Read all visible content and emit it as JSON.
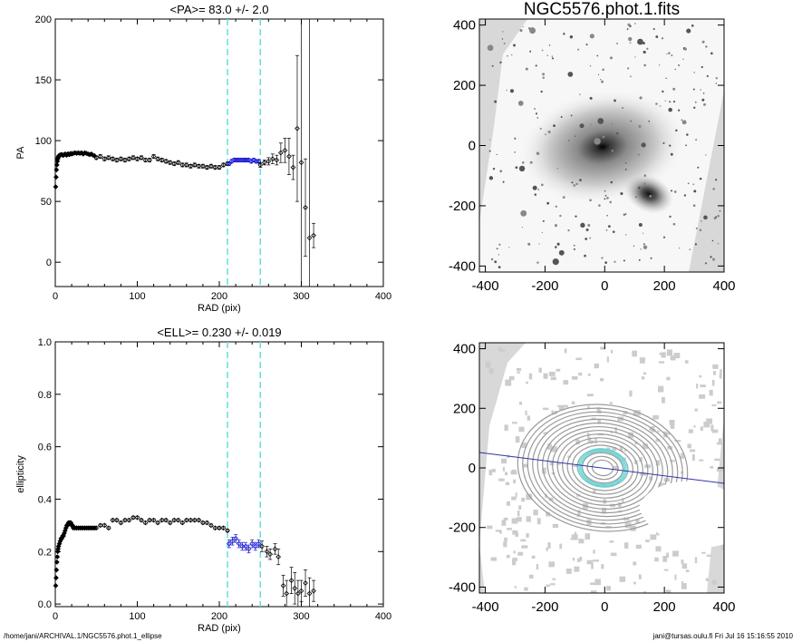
{
  "chart_data": [
    {
      "type": "scatter",
      "title": "<PA>=  83.0 +/-   2.0",
      "xlabel": "RAD (pix)",
      "ylabel": "PA",
      "xlim": [
        0,
        400
      ],
      "ylim": [
        -20,
        200
      ],
      "xticks": [
        0,
        100,
        200,
        300,
        400
      ],
      "yticks": [
        0,
        50,
        100,
        150,
        200
      ],
      "vlines": [
        210,
        250
      ],
      "series": [
        {
          "x": [
            0.5,
            1,
            1.5,
            2,
            2.5,
            3,
            3.5,
            4,
            4.5,
            5,
            6,
            7,
            8,
            9,
            10,
            11,
            12,
            13,
            14,
            15,
            16,
            17,
            18,
            19,
            20,
            22,
            24,
            26,
            28,
            30,
            32,
            34,
            36,
            38,
            40,
            42,
            44,
            46,
            48
          ],
          "y": [
            62,
            70,
            76,
            80,
            83,
            85,
            86,
            87,
            87.5,
            88,
            88,
            88.5,
            88.5,
            88,
            88,
            88.5,
            89,
            88.5,
            88,
            89,
            89,
            88.5,
            89,
            89.5,
            89,
            89.5,
            90,
            89.5,
            90,
            89.5,
            90,
            89,
            90,
            89.5,
            89,
            88.5,
            89,
            88,
            87.5
          ]
        },
        {
          "x": [
            50,
            55,
            60,
            65,
            70,
            75,
            80,
            85,
            90,
            95,
            100,
            105,
            110,
            115,
            120,
            125,
            130,
            135,
            140,
            145,
            150,
            155,
            160,
            165,
            170,
            175,
            180,
            185,
            190,
            195,
            200,
            205,
            210
          ],
          "y": [
            86,
            87,
            85,
            86,
            85,
            84,
            85,
            84,
            85,
            86,
            85,
            86,
            84,
            84,
            87,
            85,
            84,
            83,
            82,
            81,
            82,
            80,
            80,
            79,
            80,
            79,
            79,
            78,
            79,
            78,
            78,
            80,
            81
          ],
          "yerr": 1.5
        },
        {
          "x": [
            212,
            215,
            218,
            221,
            224,
            227,
            230,
            233,
            236,
            239,
            242,
            245,
            248
          ],
          "y": [
            81,
            83,
            84,
            84,
            84,
            84,
            84,
            84,
            84,
            83,
            84,
            83,
            83
          ],
          "yerr": 1.5,
          "color": "#1010d0"
        },
        {
          "x": [
            250,
            255,
            260,
            265,
            270,
            275,
            280,
            285,
            290,
            295,
            300,
            305,
            310,
            315
          ],
          "y": [
            80,
            82,
            83,
            85,
            84,
            90,
            92,
            87,
            78,
            110,
            82,
            45,
            20,
            22
          ],
          "yerr": [
            2,
            2,
            3,
            4,
            4,
            8,
            10,
            15,
            10,
            60,
            120,
            40,
            200,
            10
          ]
        }
      ]
    },
    {
      "type": "scatter",
      "title": "<ELL>= 0.230 +/-  0.019",
      "xlabel": "RAD (pix)",
      "ylabel": "ellipticity",
      "xlim": [
        0,
        400
      ],
      "ylim": [
        -0.01,
        1.0
      ],
      "xticks": [
        0,
        100,
        200,
        300,
        400
      ],
      "yticks": [
        0.0,
        0.2,
        0.4,
        0.6,
        0.8,
        1.0
      ],
      "vlines": [
        210,
        250
      ],
      "series": [
        {
          "x": [
            0.5,
            1,
            1.5,
            2,
            2.5,
            3,
            3.5,
            4,
            5,
            6,
            7,
            8,
            9,
            10,
            11,
            12,
            13,
            14,
            15,
            16,
            17,
            18,
            19,
            20,
            21,
            22,
            24,
            26,
            28,
            30,
            32,
            34,
            36,
            38,
            40,
            42,
            44,
            46,
            48
          ],
          "y": [
            0.07,
            0.1,
            0.13,
            0.16,
            0.18,
            0.2,
            0.21,
            0.22,
            0.23,
            0.24,
            0.25,
            0.25,
            0.26,
            0.26,
            0.27,
            0.28,
            0.29,
            0.3,
            0.3,
            0.31,
            0.31,
            0.31,
            0.31,
            0.3,
            0.3,
            0.29,
            0.29,
            0.29,
            0.29,
            0.29,
            0.29,
            0.29,
            0.29,
            0.29,
            0.29,
            0.29,
            0.29,
            0.29,
            0.29
          ]
        },
        {
          "x": [
            50,
            55,
            60,
            65,
            70,
            75,
            80,
            85,
            90,
            95,
            100,
            105,
            110,
            115,
            120,
            125,
            130,
            135,
            140,
            145,
            150,
            155,
            160,
            165,
            170,
            175,
            180,
            185,
            190,
            195,
            200,
            205,
            210
          ],
          "y": [
            0.29,
            0.3,
            0.3,
            0.29,
            0.32,
            0.32,
            0.31,
            0.32,
            0.32,
            0.33,
            0.33,
            0.32,
            0.31,
            0.32,
            0.32,
            0.31,
            0.32,
            0.32,
            0.31,
            0.32,
            0.32,
            0.31,
            0.32,
            0.32,
            0.32,
            0.32,
            0.31,
            0.31,
            0.3,
            0.29,
            0.29,
            0.29,
            0.28
          ],
          "yerr": 0.005
        },
        {
          "x": [
            212,
            216,
            220,
            224,
            228,
            232,
            236,
            240,
            244,
            248
          ],
          "y": [
            0.23,
            0.24,
            0.25,
            0.23,
            0.22,
            0.22,
            0.21,
            0.23,
            0.22,
            0.23
          ],
          "yerr": 0.015,
          "color": "#1010d0"
        },
        {
          "x": [
            252,
            258,
            262,
            268,
            272,
            278,
            282,
            288,
            292,
            296,
            300,
            305,
            310,
            315
          ],
          "y": [
            0.22,
            0.2,
            0.19,
            0.21,
            0.18,
            0.07,
            0.04,
            0.09,
            0.06,
            0.04,
            0.05,
            0.08,
            0.04,
            0.05
          ],
          "yerr": [
            0.02,
            0.02,
            0.02,
            0.02,
            0.03,
            0.04,
            0.05,
            0.05,
            0.06,
            0.05,
            0.04,
            0.05,
            0.06,
            0.04
          ]
        }
      ]
    }
  ],
  "images": [
    {
      "title": "NGC5576.phot.1.fits",
      "xlim": [
        -420,
        400
      ],
      "ylim": [
        -420,
        420
      ],
      "xticks": [
        -400,
        -200,
        0,
        200,
        400
      ],
      "yticks": [
        -400,
        -200,
        0,
        200,
        400
      ],
      "tick_labels_x": [
        "-400",
        "-200",
        "0",
        "200",
        "400"
      ],
      "tick_labels_y": [
        "-400",
        "-200",
        "0",
        "200",
        "400"
      ]
    },
    {
      "title": "",
      "xlim": [
        -420,
        400
      ],
      "ylim": [
        -420,
        420
      ],
      "xticks": [
        -400,
        -200,
        0,
        200,
        400
      ],
      "yticks": [
        -400,
        -200,
        0,
        200,
        400
      ],
      "tick_labels_x": [
        "-400",
        "-200",
        "0",
        "200",
        "400"
      ],
      "tick_labels_y": [
        "-400",
        "-200",
        "0",
        "200",
        "400"
      ]
    }
  ],
  "footer": {
    "left": "/home/jani/ARCHIVAL.1/NGC5576.phot.1_ellipse",
    "right": "jani@tursas.oulu.fi  Fri Jul 16 15:16:55 2010"
  }
}
